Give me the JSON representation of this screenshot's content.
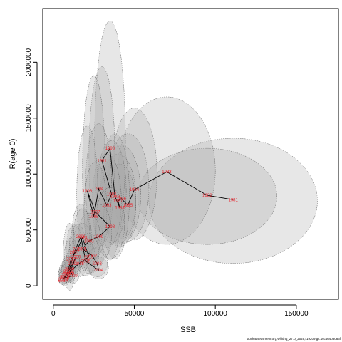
{
  "chart_data": {
    "type": "scatter",
    "title": "",
    "xlabel": "SSB",
    "ylabel": "R(age 0)",
    "xlim": [
      -6500,
      176000
    ],
    "ylim": [
      -120000,
      2480000
    ],
    "x_ticks": [
      0,
      50000,
      100000,
      150000
    ],
    "x_tick_labels": [
      "0",
      "50000",
      "100000",
      "150000"
    ],
    "y_ticks": [
      0,
      500000,
      1000000,
      1500000,
      2000000
    ],
    "y_tick_labels": [
      "0",
      "500000",
      "1000000",
      "1500000",
      "2000000"
    ],
    "grid": false,
    "legend": "none",
    "line_color": "#000000",
    "label_color": "#e8242c",
    "ellipse_fill": "#a9a9a9",
    "ellipse_stroke": "#555555",
    "points": [
      {
        "year": "1981",
        "x": 111000,
        "y": 770000
      },
      {
        "year": "1982",
        "x": 95000,
        "y": 810000
      },
      {
        "year": "1983",
        "x": 70000,
        "y": 1020000
      },
      {
        "year": "1984",
        "x": 50000,
        "y": 860000
      },
      {
        "year": "1985",
        "x": 46000,
        "y": 720000
      },
      {
        "year": "1986",
        "x": 42000,
        "y": 780000
      },
      {
        "year": "1987",
        "x": 40000,
        "y": 760000
      },
      {
        "year": "1988",
        "x": 41000,
        "y": 700000
      },
      {
        "year": "1989",
        "x": 38000,
        "y": 800000
      },
      {
        "year": "1990",
        "x": 35000,
        "y": 1230000
      },
      {
        "year": "1991",
        "x": 30000,
        "y": 1120000
      },
      {
        "year": "1992",
        "x": 36000,
        "y": 820000
      },
      {
        "year": "1993",
        "x": 33000,
        "y": 720000
      },
      {
        "year": "1994",
        "x": 28000,
        "y": 870000
      },
      {
        "year": "1995",
        "x": 25000,
        "y": 620000
      },
      {
        "year": "1996",
        "x": 21000,
        "y": 850000
      },
      {
        "year": "1997",
        "x": 26000,
        "y": 660000
      },
      {
        "year": "1998",
        "x": 35000,
        "y": 530000
      },
      {
        "year": "1999",
        "x": 28000,
        "y": 440000
      },
      {
        "year": "2000",
        "x": 22000,
        "y": 400000
      },
      {
        "year": "2001",
        "x": 18000,
        "y": 330000
      },
      {
        "year": "2002",
        "x": 24000,
        "y": 270000
      },
      {
        "year": "2003",
        "x": 27000,
        "y": 200000
      },
      {
        "year": "2004",
        "x": 28000,
        "y": 140000
      },
      {
        "year": "2005",
        "x": 20000,
        "y": 220000
      },
      {
        "year": "2006",
        "x": 17000,
        "y": 440000
      },
      {
        "year": "2007",
        "x": 13000,
        "y": 300000
      },
      {
        "year": "2008",
        "x": 10000,
        "y": 150000
      },
      {
        "year": "2009",
        "x": 12000,
        "y": 90000
      },
      {
        "year": "2010",
        "x": 7000,
        "y": 70000
      },
      {
        "year": "2011",
        "x": 9000,
        "y": 130000
      },
      {
        "year": "2012",
        "x": 11000,
        "y": 240000
      },
      {
        "year": "2013",
        "x": 15000,
        "y": 330000
      },
      {
        "year": "2014",
        "x": 18000,
        "y": 430000
      },
      {
        "year": "2015",
        "x": 22000,
        "y": 260000
      },
      {
        "year": "2016",
        "x": 16000,
        "y": 200000
      },
      {
        "year": "2017",
        "x": 8000,
        "y": 100000
      },
      {
        "year": "2018",
        "x": 6000,
        "y": 60000
      },
      {
        "year": "2019",
        "x": 10000,
        "y": 110000
      },
      {
        "year": "2020",
        "x": 14000,
        "y": 260000
      },
      {
        "year": "2021",
        "x": 12000,
        "y": 200000
      },
      {
        "year": "2022",
        "x": 9000,
        "y": 120000
      },
      {
        "year": "2023",
        "x": 7000,
        "y": 80000
      },
      {
        "year": "2024",
        "x": 6000,
        "y": 50000
      }
    ],
    "ellipses": [
      {
        "cx": 111000,
        "cy": 760000,
        "rx": 52000,
        "ry": 560000,
        "rot": 0
      },
      {
        "cx": 95000,
        "cy": 800000,
        "rx": 43000,
        "ry": 430000,
        "rot": 0
      },
      {
        "cx": 70000,
        "cy": 1030000,
        "rx": 30000,
        "ry": 660000,
        "rot": 0
      },
      {
        "cx": 50000,
        "cy": 1000000,
        "rx": 14000,
        "ry": 590000,
        "rot": 0
      },
      {
        "cx": 46000,
        "cy": 880000,
        "rx": 13000,
        "ry": 480000,
        "rot": 0
      },
      {
        "cx": 42000,
        "cy": 820000,
        "rx": 12000,
        "ry": 440000,
        "rot": 0
      },
      {
        "cx": 40000,
        "cy": 780000,
        "rx": 11000,
        "ry": 400000,
        "rot": 0
      },
      {
        "cx": 41000,
        "cy": 720000,
        "rx": 10000,
        "ry": 370000,
        "rot": 0
      },
      {
        "cx": 38000,
        "cy": 800000,
        "rx": 9000,
        "ry": 560000,
        "rot": 0
      },
      {
        "cx": 35000,
        "cy": 1300000,
        "rx": 9500,
        "ry": 1070000,
        "rot": 0
      },
      {
        "cx": 30000,
        "cy": 1160000,
        "rx": 8000,
        "ry": 800000,
        "rot": 0
      },
      {
        "cx": 36000,
        "cy": 840000,
        "rx": 9000,
        "ry": 460000,
        "rot": 0
      },
      {
        "cx": 33000,
        "cy": 760000,
        "rx": 9000,
        "ry": 420000,
        "rot": 0
      },
      {
        "cx": 28000,
        "cy": 900000,
        "rx": 8000,
        "ry": 550000,
        "rot": 0
      },
      {
        "cx": 25000,
        "cy": 1030000,
        "rx": 7000,
        "ry": 850000,
        "rot": 0
      },
      {
        "cx": 21000,
        "cy": 820000,
        "rx": 6500,
        "ry": 610000,
        "rot": 0
      },
      {
        "cx": 26000,
        "cy": 680000,
        "rx": 7000,
        "ry": 430000,
        "rot": 0
      },
      {
        "cx": 35000,
        "cy": 560000,
        "rx": 9000,
        "ry": 320000,
        "rot": 0
      },
      {
        "cx": 28000,
        "cy": 470000,
        "rx": 8000,
        "ry": 260000,
        "rot": 0
      },
      {
        "cx": 22000,
        "cy": 420000,
        "rx": 7000,
        "ry": 230000,
        "rot": 0
      },
      {
        "cx": 18000,
        "cy": 360000,
        "rx": 6000,
        "ry": 200000,
        "rot": 0
      },
      {
        "cx": 24000,
        "cy": 280000,
        "rx": 7000,
        "ry": 160000,
        "rot": 0
      },
      {
        "cx": 27000,
        "cy": 210000,
        "rx": 6500,
        "ry": 130000,
        "rot": 0
      },
      {
        "cx": 28000,
        "cy": 160000,
        "rx": 6000,
        "ry": 100000,
        "rot": 0
      },
      {
        "cx": 20000,
        "cy": 250000,
        "rx": 6000,
        "ry": 160000,
        "rot": 0
      },
      {
        "cx": 17000,
        "cy": 470000,
        "rx": 5500,
        "ry": 260000,
        "rot": 0
      },
      {
        "cx": 13000,
        "cy": 330000,
        "rx": 5000,
        "ry": 220000,
        "rot": 0
      },
      {
        "cx": 10000,
        "cy": 260000,
        "rx": 4000,
        "ry": 300000,
        "rot": 0
      },
      {
        "cx": 12000,
        "cy": 150000,
        "rx": 4500,
        "ry": 130000,
        "rot": 0
      },
      {
        "cx": 7000,
        "cy": 110000,
        "rx": 3500,
        "ry": 110000,
        "rot": 0
      },
      {
        "cx": 9000,
        "cy": 150000,
        "rx": 3800,
        "ry": 120000,
        "rot": 0
      },
      {
        "cx": 11000,
        "cy": 260000,
        "rx": 4200,
        "ry": 170000,
        "rot": 0
      },
      {
        "cx": 15000,
        "cy": 350000,
        "rx": 5000,
        "ry": 200000,
        "rot": 0
      },
      {
        "cx": 18000,
        "cy": 450000,
        "rx": 5500,
        "ry": 240000,
        "rot": 0
      },
      {
        "cx": 22000,
        "cy": 290000,
        "rx": 6000,
        "ry": 180000,
        "rot": 0
      },
      {
        "cx": 16000,
        "cy": 220000,
        "rx": 5000,
        "ry": 140000,
        "rot": 0
      },
      {
        "cx": 8000,
        "cy": 130000,
        "rx": 3500,
        "ry": 100000,
        "rot": 0
      },
      {
        "cx": 6000,
        "cy": 90000,
        "rx": 3000,
        "ry": 80000,
        "rot": 0
      },
      {
        "cx": 10000,
        "cy": 130000,
        "rx": 4000,
        "ry": 100000,
        "rot": 0
      },
      {
        "cx": 14000,
        "cy": 270000,
        "rx": 4500,
        "ry": 150000,
        "rot": 0
      },
      {
        "cx": 12000,
        "cy": 210000,
        "rx": 4200,
        "ry": 130000,
        "rot": 0
      },
      {
        "cx": 9000,
        "cy": 140000,
        "rx": 3800,
        "ry": 100000,
        "rot": 0
      },
      {
        "cx": 7000,
        "cy": 100000,
        "rx": 3200,
        "ry": 80000,
        "rot": 0
      },
      {
        "cx": 6000,
        "cy": 70000,
        "rx": 3000,
        "ry": 60000,
        "rot": 0
      }
    ]
  },
  "footer": {
    "text": "stockassessment.org,whiting_27.b_2025,r19209 git:1cc464b8086f"
  }
}
